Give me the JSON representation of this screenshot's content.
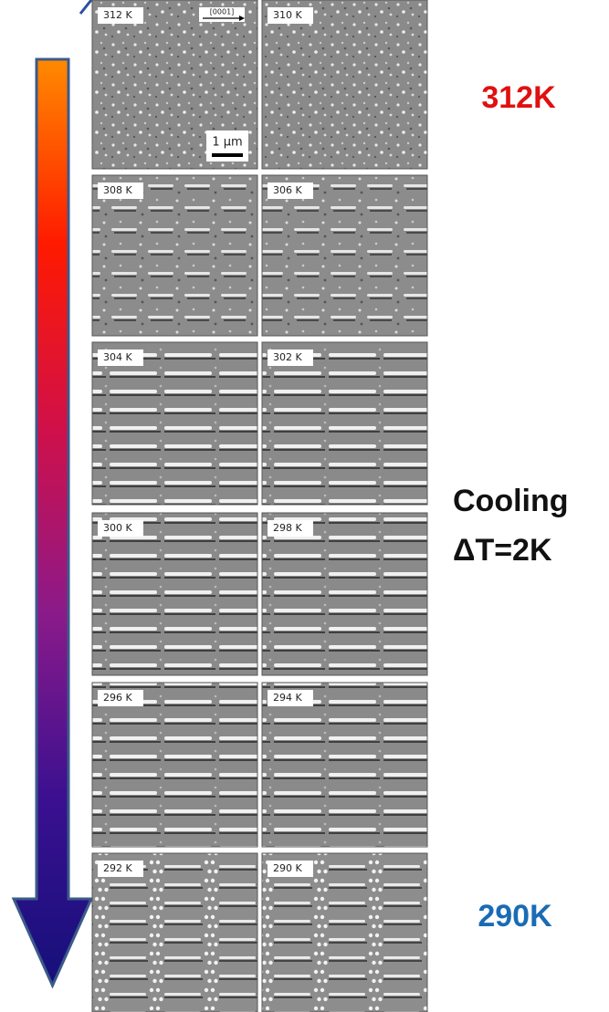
{
  "panels": [
    {
      "label": "312 K"
    },
    {
      "label": "310 K"
    },
    {
      "label": "308 K"
    },
    {
      "label": "306 K"
    },
    {
      "label": "304 K"
    },
    {
      "label": "302 K"
    },
    {
      "label": "300 K"
    },
    {
      "label": "298 K"
    },
    {
      "label": "296 K"
    },
    {
      "label": "294 K"
    },
    {
      "label": "292 K"
    },
    {
      "label": "290 K"
    }
  ],
  "annotations": {
    "direction": "[0001]",
    "scale": "1 μm"
  },
  "side": {
    "top": "312K",
    "middle": [
      "Cooling",
      "ΔT=2K"
    ],
    "bottom": "290K"
  }
}
